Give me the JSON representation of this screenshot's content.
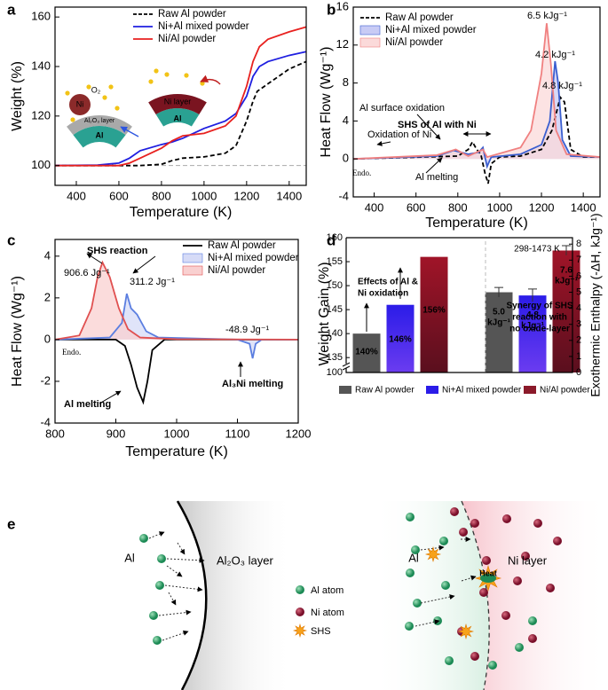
{
  "chart_data": [
    {
      "type": "line",
      "panel": "a",
      "xlabel": "Temperature (K)",
      "ylabel": "Weight (%)",
      "xlim": [
        300,
        1480
      ],
      "ylim": [
        92,
        164
      ],
      "xticks": [
        400,
        600,
        800,
        1000,
        1200,
        1400
      ],
      "yticks": [
        100,
        120,
        140,
        160
      ],
      "hline": 100,
      "series": [
        {
          "name": "Raw Al powder",
          "color": "#000000",
          "dash": true,
          "x": [
            300,
            600,
            700,
            800,
            850,
            900,
            1000,
            1100,
            1150,
            1200,
            1230,
            1250,
            1300,
            1350,
            1400,
            1480
          ],
          "values": [
            100,
            100,
            100,
            100.5,
            102,
            103,
            103.5,
            105,
            108,
            118,
            126,
            130,
            133,
            136,
            139,
            142
          ]
        },
        {
          "name": "Ni+Al mixed powder",
          "color": "#1f1fe0",
          "dash": false,
          "x": [
            300,
            500,
            600,
            650,
            700,
            800,
            850,
            900,
            1000,
            1100,
            1150,
            1200,
            1230,
            1260,
            1300,
            1400,
            1480
          ],
          "values": [
            100,
            100.2,
            101,
            103,
            106,
            108.5,
            109.5,
            111,
            115,
            118,
            121,
            128,
            136,
            140,
            142,
            144.5,
            146
          ]
        },
        {
          "name": "Ni/Al powder",
          "color": "#e8211f",
          "dash": false,
          "x": [
            300,
            600,
            650,
            700,
            800,
            850,
            900,
            1000,
            1100,
            1150,
            1200,
            1230,
            1260,
            1300,
            1400,
            1480
          ],
          "values": [
            100,
            100,
            101,
            103,
            107,
            110,
            112,
            113,
            116,
            120,
            132,
            142,
            148,
            151,
            154,
            156
          ]
        }
      ],
      "inset_labels": [
        "O₂",
        "Ni",
        "Al₂O₃ layer",
        "Al",
        "Ni layer",
        "Al"
      ]
    },
    {
      "type": "line",
      "panel": "b",
      "xlabel": "Temperature (K)",
      "ylabel": "Heat Flow (Wg⁻¹)",
      "xlim": [
        300,
        1480
      ],
      "ylim": [
        -4,
        16
      ],
      "xticks": [
        400,
        600,
        800,
        1000,
        1200,
        1400
      ],
      "yticks": [
        -4,
        0,
        4,
        8,
        12,
        16
      ],
      "series": [
        {
          "name": "Raw Al powder",
          "color": "#000000",
          "dash": true,
          "x": [
            300,
            800,
            850,
            870,
            890,
            910,
            930,
            945,
            960,
            1000,
            1100,
            1200,
            1250,
            1290,
            1310,
            1340,
            1400,
            1480
          ],
          "values": [
            0,
            0.3,
            1,
            1.8,
            1,
            0.5,
            -1.5,
            -2.6,
            -0.5,
            0.2,
            0.3,
            1,
            3,
            6.5,
            6,
            1,
            0.2,
            0.2
          ]
        },
        {
          "name": "Ni+Al mixed powder",
          "color": "#3b5fd0",
          "fill": "#c8cbf5",
          "dash": false,
          "x": [
            300,
            700,
            780,
            850,
            900,
            920,
            940,
            960,
            1100,
            1200,
            1240,
            1265,
            1280,
            1300,
            1340,
            1480
          ],
          "values": [
            0,
            0.3,
            0.9,
            0.5,
            0.7,
            1.2,
            -0.8,
            0.2,
            0.5,
            1.5,
            4,
            10.3,
            8,
            2,
            0.3,
            0.2
          ]
        },
        {
          "name": "Ni/Al powder",
          "color": "#f08080",
          "fill": "#fbdada",
          "dash": false,
          "x": [
            300,
            700,
            790,
            850,
            900,
            920,
            940,
            1100,
            1150,
            1200,
            1225,
            1245,
            1270,
            1320,
            1480
          ],
          "values": [
            0,
            0.4,
            1,
            0.3,
            0.8,
            1,
            0.2,
            1.2,
            3,
            9,
            14.3,
            10,
            3,
            0.5,
            0.2
          ]
        }
      ],
      "annotations": [
        {
          "text": "6.5 kJg⁻¹",
          "color": "#e8211f"
        },
        {
          "text": "4.2 kJg⁻¹",
          "color": "#2a6fc0"
        },
        {
          "text": "4.8 kJg⁻¹",
          "color": "#000000"
        },
        {
          "text": "SHS of Al with Ni",
          "color": "#000000",
          "bold": true
        },
        {
          "text": "Al surface oxidation",
          "color": "#000000"
        },
        {
          "text": "Oxidation of Ni",
          "color": "#000000"
        },
        {
          "text": "Al melting",
          "color": "#000000"
        },
        {
          "text": "Endo.",
          "color": "#555555",
          "serif": true
        }
      ]
    },
    {
      "type": "line",
      "panel": "c",
      "xlabel": "Temperature (K)",
      "ylabel": "Heat Flow (Wg⁻¹)",
      "xlim": [
        800,
        1200
      ],
      "ylim": [
        -4,
        4.8
      ],
      "xticks": [
        800,
        900,
        1000,
        1100,
        1200
      ],
      "yticks": [
        -4,
        -2,
        0,
        2,
        4
      ],
      "series": [
        {
          "name": "Raw Al powder",
          "color": "#000000",
          "dash": false,
          "x": [
            800,
            900,
            915,
            925,
            935,
            945,
            952,
            960,
            980,
            1200
          ],
          "values": [
            0,
            0,
            -0.3,
            -1.2,
            -2.3,
            -3,
            -2,
            -0.5,
            0,
            0
          ]
        },
        {
          "name": "Ni+Al mixed powder",
          "color": "#5b7ee0",
          "fill": "#d6dbf7",
          "dash": false,
          "x": [
            800,
            890,
            910,
            918,
            925,
            935,
            950,
            970,
            1100,
            1120,
            1125,
            1130,
            1140,
            1200
          ],
          "values": [
            0,
            0.1,
            0.8,
            2.2,
            1.5,
            1.2,
            0.4,
            0.1,
            0,
            -0.2,
            -0.9,
            -0.2,
            0,
            0
          ]
        },
        {
          "name": "Ni/Al powder",
          "color": "#e05050",
          "fill": "#f9d0d0",
          "dash": false,
          "x": [
            800,
            840,
            860,
            870,
            878,
            890,
            905,
            920,
            940,
            1000,
            1200
          ],
          "values": [
            0,
            0.2,
            1.5,
            3,
            3.7,
            3,
            1.5,
            0.5,
            0.1,
            0.02,
            0
          ]
        }
      ],
      "annotations": [
        {
          "text": "906.6 Jg⁻¹",
          "color": "#e8211f"
        },
        {
          "text": "311.2 Jg⁻¹",
          "color": "#3b5fd0"
        },
        {
          "text": "-48.9 Jg⁻¹",
          "color": "#3b5fd0"
        },
        {
          "text": "SHS reaction",
          "color": "#000000",
          "bold": true
        },
        {
          "text": "Al melting",
          "color": "#000000",
          "bold": true
        },
        {
          "text": "Al₃Ni melting",
          "color": "#000000",
          "bold": true
        },
        {
          "text": "Endo.",
          "color": "#555555",
          "serif": true
        }
      ]
    },
    {
      "type": "bar",
      "panel": "d",
      "ylabel": "Weight Gain (%)",
      "y2label": "Exothermic Enthalpy (-ΔH, kJg⁻¹)",
      "ylim": [
        100,
        160
      ],
      "ybreak": 133,
      "yticks": [
        100,
        135,
        140,
        145,
        150,
        155,
        160
      ],
      "y2lim": [
        0,
        8.4
      ],
      "y2ticks": [
        0,
        1,
        2,
        3,
        4,
        5,
        6,
        7,
        8
      ],
      "legend": [
        {
          "name": "Raw Al powder",
          "color": "#555555"
        },
        {
          "name": "Ni+Al mixed powder",
          "color": "#2b1ce8"
        },
        {
          "name": "Ni/Al powder",
          "color": "#8b1a2a"
        }
      ],
      "weight_gain": {
        "values": [
          140,
          146,
          156
        ],
        "value_labels": [
          "140%",
          "146%",
          "156%"
        ]
      },
      "enthalpy": {
        "axis": "y2",
        "values": [
          5.0,
          4.8,
          7.6
        ],
        "errors": [
          0.3,
          0.4,
          0.3
        ],
        "value_labels": [
          "5.0 kJg⁻¹",
          "4.8 kJg⁻¹",
          "7.6 kJg⁻¹"
        ]
      },
      "annotations": [
        {
          "lines": [
            "Effects of Al &",
            "Ni oxidation"
          ]
        },
        {
          "lines": [
            "Synergy of SHS",
            "reaction with",
            "no oxide-layer"
          ]
        },
        {
          "lines": [
            "298-1473 K"
          ]
        }
      ]
    }
  ],
  "diagram": {
    "panel": "e",
    "left": {
      "inner": "Al",
      "outer": "Al₂O₃ layer"
    },
    "right": {
      "inner": "Al",
      "outer": "Ni layer",
      "heat": "Heat"
    },
    "legend": {
      "al": "Al atom",
      "ni": "Ni atom",
      "shs": "SHS"
    }
  }
}
